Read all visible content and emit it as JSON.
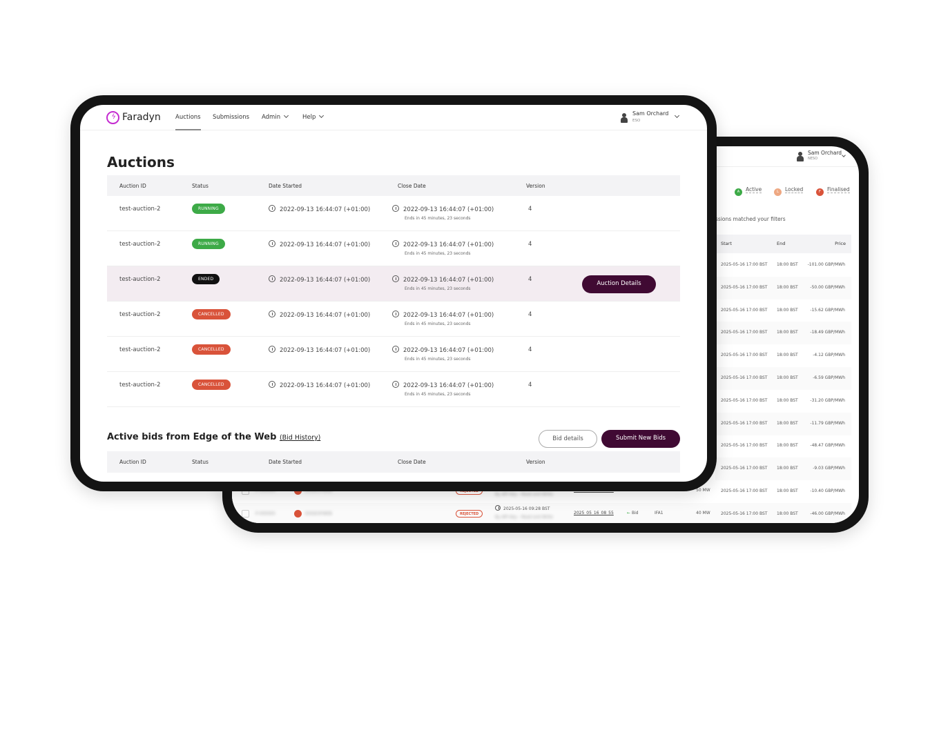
{
  "colors": {
    "primary": "#400a33",
    "running": "#3daa47",
    "ended": "#111111",
    "cancelled": "#d9533a",
    "highlight": "#f3ecf1"
  },
  "front": {
    "brand": "Faradyn",
    "nav": [
      {
        "label": "Auctions",
        "active": true
      },
      {
        "label": "Submissions"
      },
      {
        "label": "Admin",
        "dropdown": true
      },
      {
        "label": "Help",
        "dropdown": true
      }
    ],
    "user": {
      "name": "Sam Orchard",
      "org": "ESO"
    },
    "title": "Auctions",
    "columns": [
      "Auction ID",
      "Status",
      "Date Started",
      "Close Date",
      "Version"
    ],
    "rows": [
      {
        "id": "test-auction-2",
        "status": "RUNNING",
        "started": "2022-09-13 16:44:07 (+01:00)",
        "close": "2022-09-13 16:44:07 (+01:00)",
        "ends": "Ends in 45 minutes, 23 seconds",
        "version": "4"
      },
      {
        "id": "test-auction-2",
        "status": "RUNNING",
        "started": "2022-09-13 16:44:07 (+01:00)",
        "close": "2022-09-13 16:44:07 (+01:00)",
        "ends": "Ends in 45 minutes, 23 seconds",
        "version": "4"
      },
      {
        "id": "test-auction-2",
        "status": "ENDED",
        "started": "2022-09-13 16:44:07 (+01:00)",
        "close": "2022-09-13 16:44:07 (+01:00)",
        "ends": "Ends in 45 minutes, 23 seconds",
        "version": "4",
        "action": "Auction Details"
      },
      {
        "id": "test-auction-2",
        "status": "CANCELLED",
        "started": "2022-09-13 16:44:07 (+01:00)",
        "close": "2022-09-13 16:44:07 (+01:00)",
        "ends": "Ends in 45 minutes, 23 seconds",
        "version": "4"
      },
      {
        "id": "test-auction-2",
        "status": "CANCELLED",
        "started": "2022-09-13 16:44:07 (+01:00)",
        "close": "2022-09-13 16:44:07 (+01:00)",
        "ends": "Ends in 45 minutes, 23 seconds",
        "version": "4"
      },
      {
        "id": "test-auction-2",
        "status": "CANCELLED",
        "started": "2022-09-13 16:44:07 (+01:00)",
        "close": "2022-09-13 16:44:07 (+01:00)",
        "ends": "Ends in 45 minutes, 23 seconds",
        "version": "4"
      }
    ],
    "bids_title": "Active bids from Edge of the Web",
    "bid_history": "(Bid History)",
    "bid_details": "Bid details",
    "submit_bids": "Submit New Bids",
    "bids_columns": [
      "Auction ID",
      "Status",
      "Date Started",
      "Close Date",
      "Version"
    ]
  },
  "back": {
    "user": {
      "name": "Sam Orchard",
      "org": "NESO"
    },
    "legend": [
      {
        "letter": "A",
        "label": "Active",
        "color": "#3daa47"
      },
      {
        "letter": "L",
        "label": "Locked",
        "color": "#eea882"
      },
      {
        "letter": "F",
        "label": "Finalised",
        "color": "#d9533a"
      }
    ],
    "matched": "ssions matched your filters",
    "columns": [
      "Start",
      "End",
      "Price"
    ],
    "rows": [
      {
        "start": "2025-05-16 17:00 BST",
        "end": "18:00 BST",
        "price": "-101.00 GBP/MWh"
      },
      {
        "start": "2025-05-16 17:00 BST",
        "end": "18:00 BST",
        "price": "-50.00 GBP/MWh"
      },
      {
        "start": "2025-05-16 17:00 BST",
        "end": "18:00 BST",
        "price": "-15.62 GBP/MWh"
      },
      {
        "start": "2025-05-16 17:00 BST",
        "end": "18:00 BST",
        "price": "-18.49 GBP/MWh"
      },
      {
        "start": "2025-05-16 17:00 BST",
        "end": "18:00 BST",
        "price": "-4.12 GBP/MWh"
      },
      {
        "start": "2025-05-16 17:00 BST",
        "end": "18:00 BST",
        "price": "-6.59 GBP/MWh"
      },
      {
        "start": "2025-05-16 17:00 BST",
        "end": "18:00 BST",
        "price": "-31.20 GBP/MWh"
      },
      {
        "start": "2025-05-16 17:00 BST",
        "end": "18:00 BST",
        "price": "-11.79 GBP/MWh"
      },
      {
        "start": "2025-05-16 17:00 BST",
        "end": "18:00 BST",
        "price": "-48.47 GBP/MWh"
      },
      {
        "start": "2025-05-16 17:00 BST",
        "end": "18:00 BST",
        "price": "-9.03 GBP/MWh"
      },
      {
        "start": "2025-05-16 17:00 BST",
        "end": "18:00 BST",
        "price": "-10.40 GBP/MWh",
        "status": "REJECTED",
        "submitted": "",
        "ref": "2025_05_16_08_55",
        "dir": "Bid",
        "market": "IFA1",
        "mw": "50 MW"
      },
      {
        "start": "2025-05-16 17:00 BST",
        "end": "18:00 BST",
        "price": "-46.00 GBP/MWh",
        "status": "REJECTED",
        "submitted": "2025-05-16 09:28 BST",
        "ref": "2025_05_16_08_55",
        "dir": "Bid",
        "market": "IFA1",
        "mw": "40 MW"
      }
    ]
  }
}
